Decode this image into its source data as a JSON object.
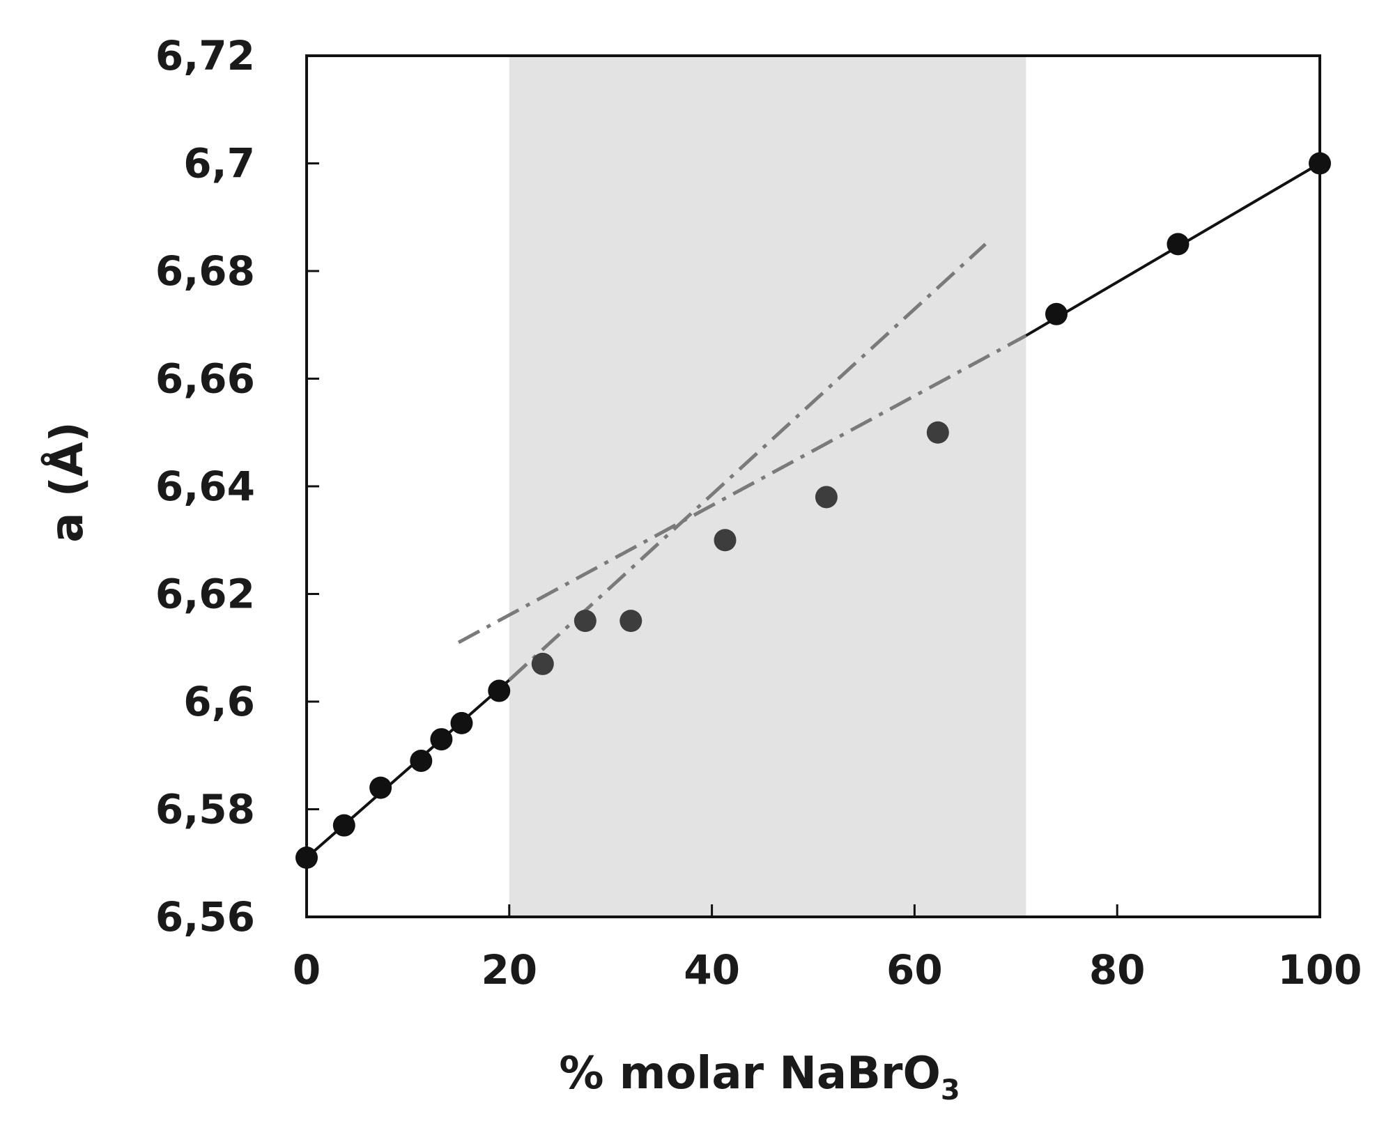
{
  "chart_data": {
    "type": "scatter",
    "xlabel": "% molar NaBrO",
    "xlabel_subscript": "3",
    "ylabel": "a (Å)",
    "xlim": [
      0,
      100
    ],
    "ylim": [
      6.56,
      6.72
    ],
    "x_ticks": [
      {
        "value": 0,
        "label": "0"
      },
      {
        "value": 20,
        "label": "20"
      },
      {
        "value": 40,
        "label": "40"
      },
      {
        "value": 60,
        "label": "60"
      },
      {
        "value": 80,
        "label": "80"
      },
      {
        "value": 100,
        "label": "100"
      }
    ],
    "y_ticks": [
      {
        "value": 6.56,
        "label": "6,56"
      },
      {
        "value": 6.58,
        "label": "6,58"
      },
      {
        "value": 6.6,
        "label": "6,6"
      },
      {
        "value": 6.62,
        "label": "6,62"
      },
      {
        "value": 6.64,
        "label": "6,64"
      },
      {
        "value": 6.66,
        "label": "6,66"
      },
      {
        "value": 6.68,
        "label": "6,68"
      },
      {
        "value": 6.7,
        "label": "6,7"
      },
      {
        "value": 6.72,
        "label": "6,72"
      }
    ],
    "shaded_region": {
      "x": [
        20,
        71
      ],
      "color": "#e3e3e3"
    },
    "grid": false,
    "series": [
      {
        "style": "points-with-line",
        "color": "#111111",
        "points": [
          {
            "x": 0,
            "y": 6.571
          },
          {
            "x": 3.7,
            "y": 6.577
          },
          {
            "x": 7.3,
            "y": 6.584
          },
          {
            "x": 11.3,
            "y": 6.589
          },
          {
            "x": 13.3,
            "y": 6.593
          },
          {
            "x": 15.3,
            "y": 6.596
          },
          {
            "x": 19.0,
            "y": 6.602
          }
        ]
      },
      {
        "style": "points",
        "color": "#3d3d3d",
        "points": [
          {
            "x": 23.3,
            "y": 6.607
          },
          {
            "x": 27.5,
            "y": 6.615
          },
          {
            "x": 32.0,
            "y": 6.615
          },
          {
            "x": 41.3,
            "y": 6.63
          },
          {
            "x": 51.3,
            "y": 6.638
          },
          {
            "x": 62.3,
            "y": 6.65
          }
        ]
      },
      {
        "style": "points-with-line",
        "color": "#111111",
        "points": [
          {
            "x": 74.0,
            "y": 6.672
          },
          {
            "x": 86.0,
            "y": 6.685
          },
          {
            "x": 100,
            "y": 6.7
          }
        ]
      }
    ],
    "reference_lines": [
      {
        "style": "solid",
        "color": "#111111",
        "from": {
          "x": 0,
          "y": 6.571
        },
        "to": {
          "x": 20,
          "y": 6.604
        }
      },
      {
        "style": "dash-dot",
        "color": "#7a7a7a",
        "from": {
          "x": 20,
          "y": 6.604
        },
        "to": {
          "x": 67,
          "y": 6.685
        }
      },
      {
        "style": "dash-dot",
        "color": "#7a7a7a",
        "from": {
          "x": 15,
          "y": 6.611
        },
        "to": {
          "x": 71,
          "y": 6.668
        }
      },
      {
        "style": "solid",
        "color": "#111111",
        "from": {
          "x": 71,
          "y": 6.668
        },
        "to": {
          "x": 100,
          "y": 6.7
        }
      }
    ]
  }
}
